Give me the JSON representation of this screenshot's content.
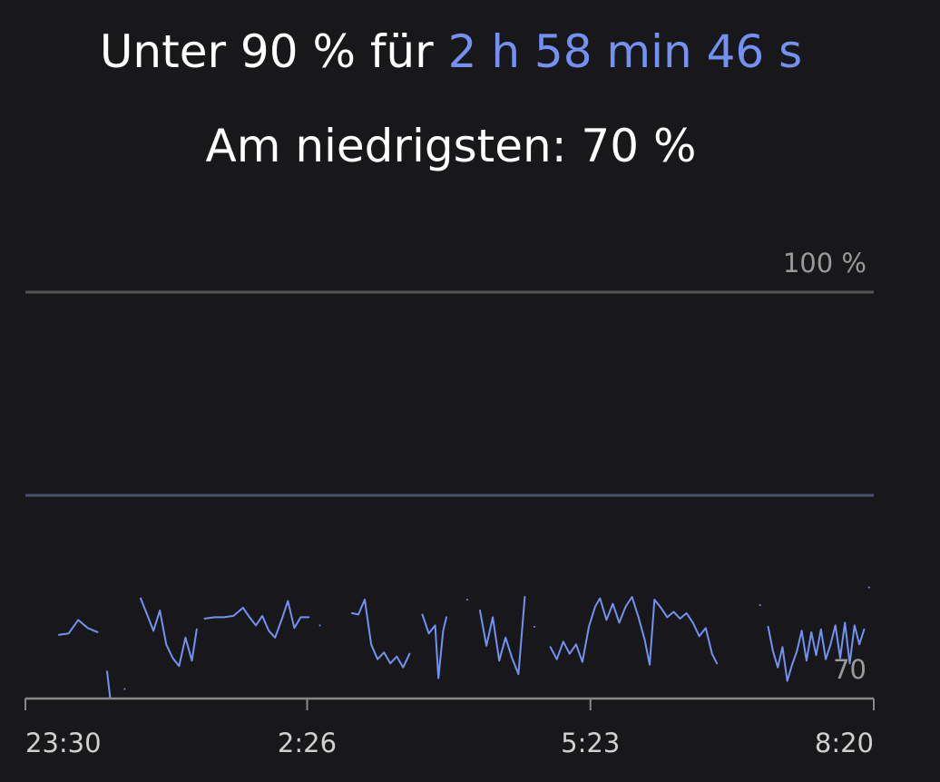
{
  "chart_data": {
    "type": "line",
    "title": "Unter 90 % für",
    "title_highlight": "2 h 58 min 46 s",
    "subtitle": "Am niedrigsten: 70 %",
    "ylim": [
      70,
      100
    ],
    "yticks": [
      70,
      {
        "value": 100,
        "label": "100 %"
      }
    ],
    "reference_line": 85,
    "xlim": [
      "23:30",
      "8:20"
    ],
    "xticks": [
      "23:30",
      "2:26",
      "5:23",
      "8:20"
    ],
    "grid": true,
    "series": [
      {
        "color": "#7391f2",
        "x": [
          "23:51",
          "23:57",
          "0:03",
          "0:09",
          "0:15",
          "0:18",
          "0:21",
          "0:23",
          "0:27",
          "0:32",
          "0:37",
          "0:42",
          "0:46",
          "0:50",
          "0:54",
          "0:58",
          "1:02",
          "1:06",
          "1:10",
          "1:14",
          "1:17",
          "1:20",
          "1:22",
          "1:28",
          "1:34",
          "1:40",
          "1:46",
          "1:50",
          "1:54",
          "1:58",
          "2:02",
          "2:06",
          "2:10",
          "2:14",
          "2:18",
          "2:22",
          "2:27",
          "2:30",
          "2:34",
          "2:38",
          "2:54",
          "2:58",
          "3:02",
          "3:06",
          "3:10",
          "3:14",
          "3:18",
          "3:22",
          "3:26",
          "3:30",
          "3:33",
          "3:38",
          "3:42",
          "3:46",
          "3:48",
          "3:51",
          "3:53",
          "3:55",
          "3:57",
          "4:00",
          "4:06",
          "4:09",
          "4:14",
          "4:18",
          "4:22",
          "4:26",
          "4:30",
          "4:34",
          "4:38",
          "4:42",
          "4:45",
          "4:48",
          "4:51",
          "4:58",
          "5:02",
          "5:06",
          "5:10",
          "5:14",
          "5:18",
          "5:22",
          "5:26",
          "5:29",
          "5:33",
          "5:37",
          "5:41",
          "5:45",
          "5:49",
          "5:53",
          "5:57",
          "6:00",
          "6:03",
          "6:07",
          "6:11",
          "6:15",
          "6:19",
          "6:23",
          "6:27",
          "6:31",
          "6:35",
          "6:39",
          "6:42",
          "6:46",
          "7:09",
          "7:12",
          "7:14",
          "7:17",
          "7:20",
          "7:23",
          "7:26",
          "7:29",
          "7:32",
          "7:35",
          "7:38",
          "7:41",
          "7:44",
          "7:47",
          "7:50",
          "7:53",
          "7:56",
          "7:59",
          "8:02",
          "8:05",
          "8:08",
          "8:11",
          "8:14",
          "8:16",
          "8:17"
        ],
        "values": [
          74.7,
          74.8,
          75.8,
          75.2,
          74.9,
          null,
          72.0,
          70.0,
          null,
          70.7,
          null,
          77.4,
          76.2,
          75.0,
          76.5,
          74.0,
          73.0,
          72.4,
          74.5,
          72.8,
          75.1,
          null,
          75.9,
          76.0,
          76.0,
          76.1,
          76.7,
          76.0,
          75.4,
          76.1,
          75.0,
          74.5,
          75.8,
          77.2,
          75.2,
          76.0,
          76.0,
          null,
          75.4,
          null,
          76.3,
          76.2,
          77.3,
          74.0,
          72.9,
          73.4,
          72.6,
          73.1,
          72.3,
          73.3,
          null,
          76.2,
          74.8,
          75.4,
          71.5,
          75.0,
          76.0,
          null,
          70.0,
          null,
          77.3,
          null,
          76.5,
          73.9,
          76.0,
          72.8,
          74.5,
          73.0,
          71.8,
          77.5,
          null,
          75.3,
          null,
          73.8,
          72.9,
          74.2,
          73.3,
          74.0,
          72.7,
          75.3,
          76.8,
          77.4,
          75.8,
          77.0,
          75.6,
          76.8,
          77.5,
          76.0,
          74.3,
          72.5,
          77.3,
          76.7,
          76.0,
          76.4,
          75.9,
          76.3,
          75.6,
          74.6,
          75.2,
          73.3,
          72.6,
          null,
          76.9,
          null,
          75.3,
          73.5,
          72.3,
          73.8,
          71.3,
          72.5,
          73.5,
          75.0,
          72.8,
          74.9,
          73.2,
          75.1,
          72.9,
          74.0,
          75.4,
          73.0,
          75.6,
          72.6,
          75.4,
          74.0,
          75.1,
          null,
          78.2
        ]
      }
    ]
  }
}
